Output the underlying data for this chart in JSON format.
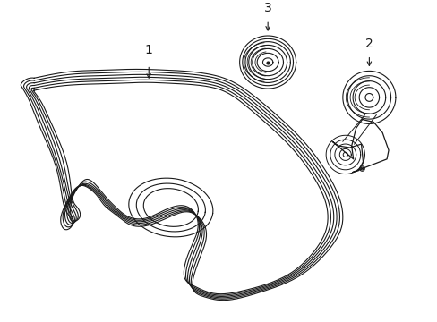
{
  "background_color": "#ffffff",
  "line_color": "#1a1a1a",
  "fig_width": 4.89,
  "fig_height": 3.6,
  "dpi": 100,
  "label1": "1",
  "label2": "2",
  "label3": "3"
}
